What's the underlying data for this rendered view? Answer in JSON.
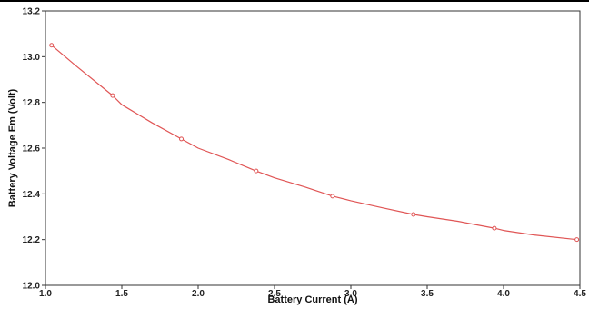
{
  "chart_data": {
    "type": "line",
    "title": "",
    "xlabel": "Battery Current (A)",
    "ylabel": "Battery Voltage Em (Volt)",
    "xlim": [
      1.0,
      4.5
    ],
    "ylim": [
      12.0,
      13.2
    ],
    "xticks": [
      "1.0",
      "1.5",
      "2.0",
      "2.5",
      "3.0",
      "3.5",
      "4.0",
      "4.5"
    ],
    "yticks": [
      "12.0",
      "12.2",
      "12.4",
      "12.6",
      "12.8",
      "13.0",
      "13.2"
    ],
    "grid": false,
    "legend": "none",
    "series": [
      {
        "color": "#e05555",
        "markers": "open-circle",
        "markers_x": [
          1.04,
          1.44,
          1.89,
          2.38,
          2.88,
          3.41,
          3.94,
          4.48
        ],
        "markers_y": [
          13.05,
          12.83,
          12.64,
          12.5,
          12.39,
          12.31,
          12.25,
          12.2
        ],
        "curve_x": [
          1.04,
          1.2,
          1.44,
          1.5,
          1.7,
          1.89,
          2.0,
          2.2,
          2.38,
          2.5,
          2.7,
          2.88,
          3.0,
          3.2,
          3.41,
          3.5,
          3.7,
          3.94,
          4.0,
          4.2,
          4.48
        ],
        "curve_y": [
          13.05,
          12.96,
          12.83,
          12.79,
          12.71,
          12.64,
          12.6,
          12.55,
          12.5,
          12.47,
          12.43,
          12.39,
          12.37,
          12.34,
          12.31,
          12.3,
          12.28,
          12.25,
          12.24,
          12.22,
          12.2
        ]
      }
    ]
  }
}
